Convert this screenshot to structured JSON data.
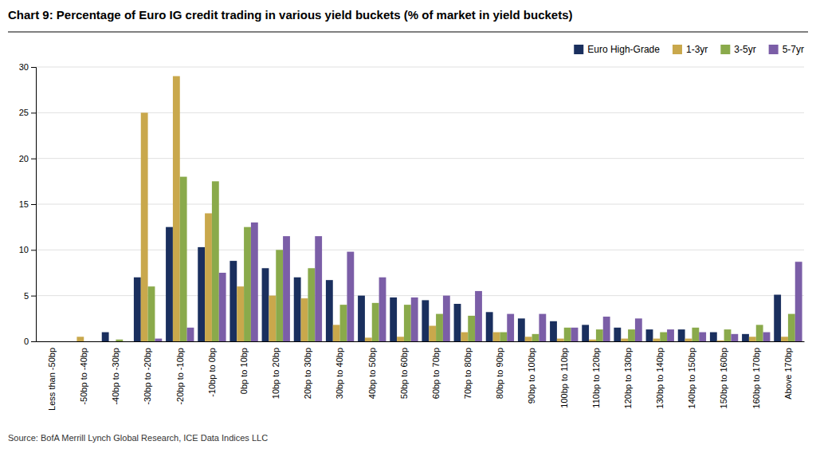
{
  "chart_data": {
    "type": "bar",
    "title": "Chart 9: Percentage of Euro IG credit trading in various yield buckets (% of market in yield buckets)",
    "annotations": [
      "Source: BofA Merrill Lynch Global Research, ICE Data Indices LLC"
    ],
    "categories": [
      "Less than -50bp",
      "-50bp to -40bp",
      "-40bp to -30bp",
      "-30bp to -20bp",
      "-20bp to -10bp",
      "-10bp to 0bp",
      "0bp to 10bp",
      "10bp to 20bp",
      "20bp to 30bp",
      "30bp to 40bp",
      "40bp to 50bp",
      "50bp to 60bp",
      "60bp to 70bp",
      "70bp to 80bp",
      "80bp to 90bp",
      "90bp to 100bp",
      "100bp to 110bp",
      "110bp to 120bp",
      "120bp to 130bp",
      "130bp to 140bp",
      "140bp to 150bp",
      "150bp to 160bp",
      "160bp to 170bp",
      "Above 170bp"
    ],
    "series": [
      {
        "name": "Euro High-Grade",
        "color": "#1a2f5e",
        "values": [
          0.0,
          0.0,
          1.0,
          7.0,
          12.5,
          10.3,
          8.8,
          8.0,
          7.0,
          6.7,
          5.0,
          4.8,
          4.5,
          4.1,
          3.2,
          2.5,
          2.2,
          1.8,
          1.5,
          1.3,
          1.3,
          1.0,
          0.8,
          5.1
        ]
      },
      {
        "name": "1-3yr",
        "color": "#c9a84c",
        "values": [
          0.0,
          0.5,
          0.0,
          25.0,
          29.0,
          14.0,
          6.0,
          5.0,
          4.7,
          1.8,
          0.4,
          0.5,
          1.7,
          1.0,
          1.0,
          0.5,
          0.3,
          0.2,
          0.3,
          0.3,
          0.3,
          0.1,
          0.5,
          0.5
        ]
      },
      {
        "name": "3-5yr",
        "color": "#8aaa4b",
        "values": [
          0.0,
          0.0,
          0.2,
          6.0,
          18.0,
          17.5,
          12.5,
          10.0,
          8.0,
          4.0,
          4.2,
          4.0,
          3.0,
          2.8,
          1.0,
          0.8,
          1.5,
          1.3,
          1.3,
          1.0,
          1.5,
          1.3,
          1.8,
          3.0
        ]
      },
      {
        "name": "5-7yr",
        "color": "#7b5ea7",
        "values": [
          0.0,
          0.0,
          0.0,
          0.3,
          1.5,
          7.5,
          13.0,
          11.5,
          11.5,
          9.8,
          7.0,
          4.8,
          5.0,
          5.5,
          3.0,
          3.0,
          1.5,
          2.7,
          2.5,
          1.3,
          1.0,
          0.8,
          1.0,
          8.7
        ]
      }
    ],
    "ylim": [
      0,
      30
    ],
    "yticks": [
      0,
      5,
      10,
      15,
      20,
      25,
      30
    ],
    "grid": true,
    "legend": "upper-right"
  }
}
